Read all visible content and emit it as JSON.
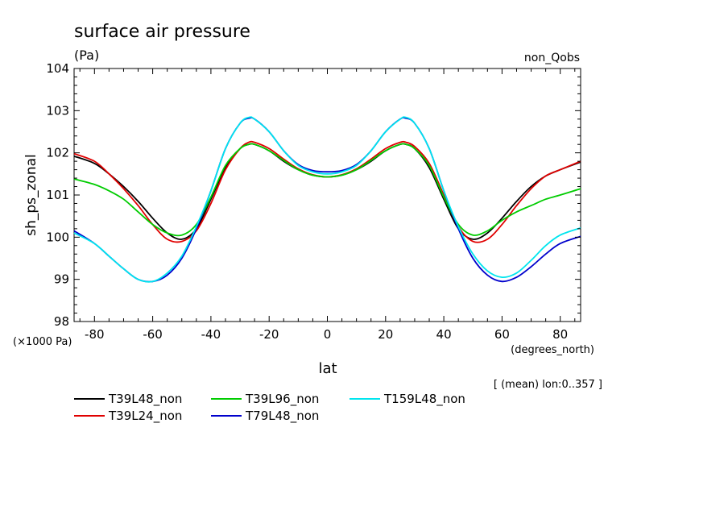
{
  "chart_data": {
    "type": "line",
    "title": "surface air pressure",
    "units_label": "(Pa)",
    "experiment": "non_Qobs",
    "ylabel": "sh_ps_zonal",
    "xlabel": "lat",
    "x_units": "(degrees_north)",
    "y_scale_note": "(×1000 Pa)",
    "subset_note": "[ (mean) lon:0..357 ]",
    "xlim": [
      -87,
      87
    ],
    "ylim": [
      98,
      104
    ],
    "x_ticks": [
      -80,
      -60,
      -40,
      -20,
      0,
      20,
      40,
      60,
      80
    ],
    "y_ticks": [
      98,
      99,
      100,
      101,
      102,
      103,
      104
    ],
    "grid": false,
    "legend_position": "bottom-left",
    "x": [
      -87,
      -80,
      -75,
      -70,
      -65,
      -60,
      -55,
      -50,
      -45,
      -40,
      -35,
      -30,
      -27,
      -25,
      -20,
      -15,
      -10,
      -5,
      0,
      5,
      10,
      15,
      20,
      25,
      27,
      30,
      35,
      40,
      45,
      50,
      55,
      60,
      65,
      70,
      75,
      80,
      87
    ],
    "series": [
      {
        "name": "T39L48_non",
        "color": "#000000",
        "values": [
          101.92,
          101.75,
          101.5,
          101.2,
          100.85,
          100.45,
          100.1,
          99.95,
          100.2,
          100.9,
          101.65,
          102.1,
          102.2,
          102.2,
          102.05,
          101.8,
          101.6,
          101.47,
          101.43,
          101.47,
          101.6,
          101.8,
          102.05,
          102.2,
          102.2,
          102.1,
          101.65,
          100.9,
          100.2,
          99.95,
          100.1,
          100.45,
          100.85,
          101.2,
          101.45,
          101.6,
          101.78
        ]
      },
      {
        "name": "T39L24_non",
        "color": "#e00000",
        "values": [
          101.98,
          101.8,
          101.5,
          101.15,
          100.75,
          100.3,
          99.95,
          99.9,
          100.15,
          100.8,
          101.6,
          102.1,
          102.25,
          102.25,
          102.1,
          101.85,
          101.62,
          101.48,
          101.43,
          101.48,
          101.62,
          101.85,
          102.1,
          102.25,
          102.25,
          102.15,
          101.75,
          101.0,
          100.25,
          99.9,
          99.95,
          100.3,
          100.75,
          101.15,
          101.45,
          101.6,
          101.8
        ]
      },
      {
        "name": "T39L96_non",
        "color": "#00cc00",
        "values": [
          101.38,
          101.25,
          101.1,
          100.9,
          100.6,
          100.3,
          100.1,
          100.05,
          100.3,
          100.95,
          101.7,
          102.1,
          102.2,
          102.2,
          102.05,
          101.82,
          101.6,
          101.47,
          101.43,
          101.47,
          101.6,
          101.82,
          102.05,
          102.2,
          102.2,
          102.1,
          101.7,
          100.95,
          100.3,
          100.05,
          100.15,
          100.4,
          100.6,
          100.75,
          100.9,
          101.0,
          101.15
        ]
      },
      {
        "name": "T79L48_non",
        "color": "#0000cc",
        "values": [
          100.15,
          99.85,
          99.55,
          99.25,
          99.0,
          98.95,
          99.1,
          99.5,
          100.2,
          101.1,
          102.1,
          102.7,
          102.82,
          102.8,
          102.5,
          102.05,
          101.72,
          101.58,
          101.55,
          101.58,
          101.72,
          102.05,
          102.5,
          102.8,
          102.82,
          102.7,
          102.1,
          101.1,
          100.2,
          99.5,
          99.1,
          98.95,
          99.05,
          99.3,
          99.6,
          99.85,
          100.02
        ]
      },
      {
        "name": "T159L48_non",
        "color": "#00e5ee",
        "values": [
          100.1,
          99.85,
          99.55,
          99.25,
          99.0,
          98.95,
          99.15,
          99.55,
          100.25,
          101.1,
          102.1,
          102.7,
          102.84,
          102.8,
          102.5,
          102.05,
          101.7,
          101.55,
          101.5,
          101.55,
          101.7,
          102.05,
          102.5,
          102.8,
          102.84,
          102.7,
          102.1,
          101.1,
          100.25,
          99.6,
          99.2,
          99.05,
          99.15,
          99.45,
          99.8,
          100.05,
          100.22
        ]
      }
    ]
  }
}
